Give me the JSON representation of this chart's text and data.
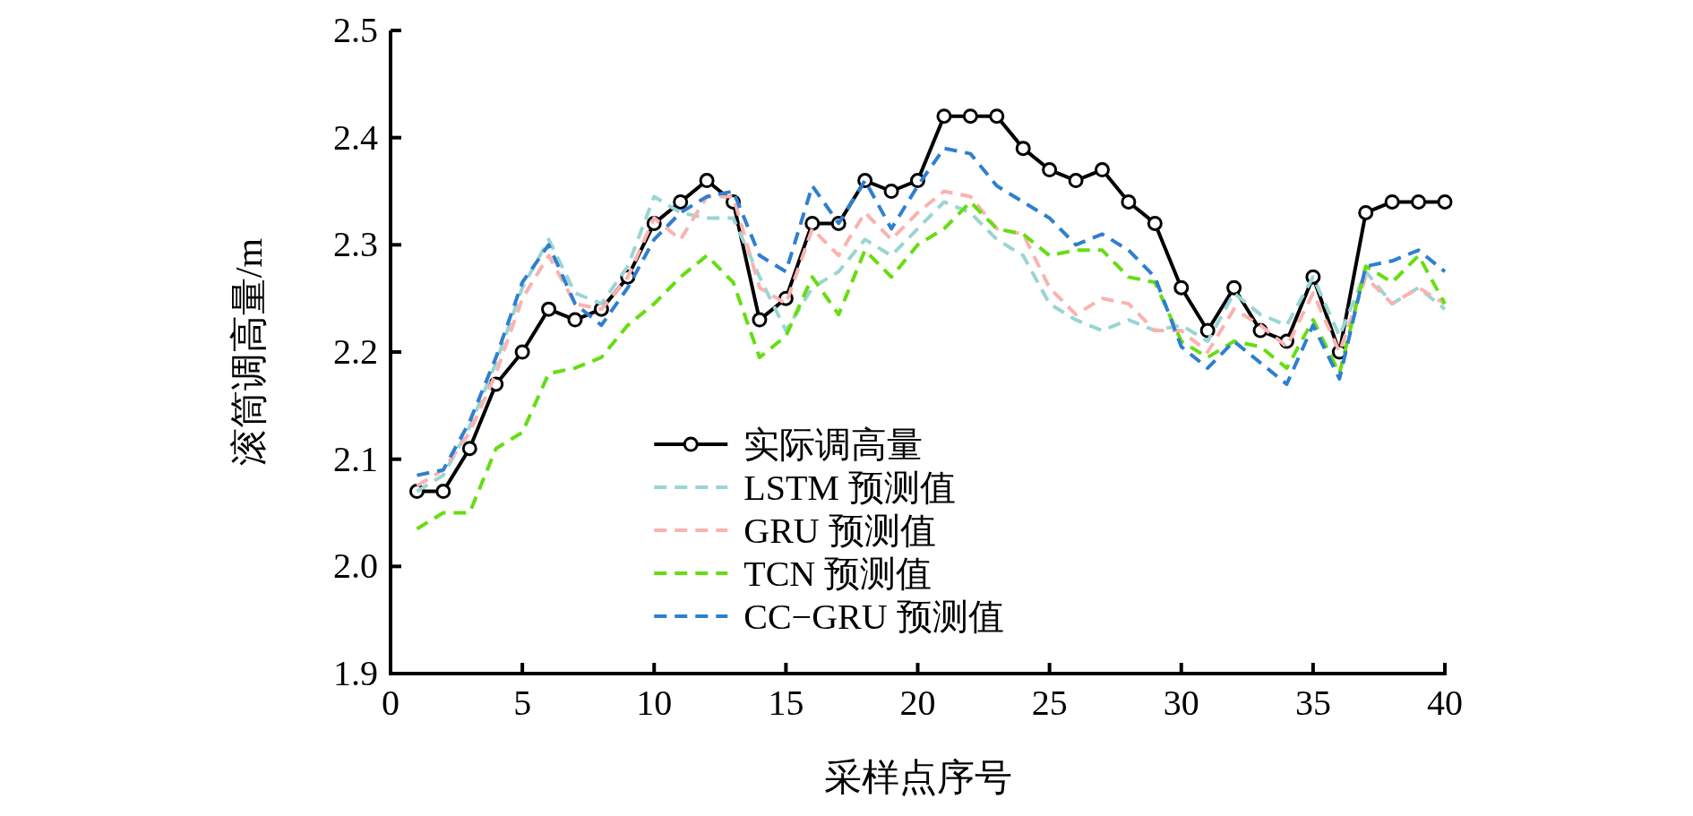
{
  "chart_data": {
    "type": "line",
    "xlabel": "采样点序号",
    "ylabel": "滚筒调高量/m",
    "x": [
      1,
      2,
      3,
      4,
      5,
      6,
      7,
      8,
      9,
      10,
      11,
      12,
      13,
      14,
      15,
      16,
      17,
      18,
      19,
      20,
      21,
      22,
      23,
      24,
      25,
      26,
      27,
      28,
      29,
      30,
      31,
      32,
      33,
      34,
      35,
      36,
      37,
      38,
      39,
      40
    ],
    "xlim": [
      0,
      40
    ],
    "xticks": [
      0,
      5,
      10,
      15,
      20,
      25,
      30,
      35,
      40
    ],
    "ylim": [
      1.9,
      2.5
    ],
    "yticks": [
      {
        "value": 1.9,
        "label": "1.9"
      },
      {
        "value": 2.0,
        "label": "2.0"
      },
      {
        "value": 2.1,
        "label": "2.1"
      },
      {
        "value": 2.2,
        "label": "2.2"
      },
      {
        "value": 2.3,
        "label": "2.3"
      },
      {
        "value": 2.4,
        "label": "2.4"
      },
      {
        "value": 2.5,
        "label": "2.5"
      }
    ],
    "grid": false,
    "legend": "bottom",
    "series": [
      {
        "name": "实际调高量",
        "color": "#000000",
        "line_style": "solid",
        "marker": "circle",
        "values": [
          2.07,
          2.07,
          2.11,
          2.17,
          2.2,
          2.24,
          2.23,
          2.24,
          2.27,
          2.32,
          2.34,
          2.36,
          2.34,
          2.23,
          2.25,
          2.32,
          2.32,
          2.36,
          2.35,
          2.36,
          2.42,
          2.42,
          2.42,
          2.39,
          2.37,
          2.36,
          2.37,
          2.34,
          2.32,
          2.26,
          2.22,
          2.26,
          2.22,
          2.21,
          2.27,
          2.2,
          2.33,
          2.34,
          2.34,
          2.34
        ]
      },
      {
        "name": "LSTM 预测值",
        "color": "#99d5d3",
        "line_style": "dashed",
        "marker": "none",
        "values": [
          2.07,
          2.085,
          2.13,
          2.19,
          2.26,
          2.305,
          2.255,
          2.245,
          2.28,
          2.345,
          2.33,
          2.325,
          2.325,
          2.27,
          2.22,
          2.26,
          2.275,
          2.305,
          2.29,
          2.315,
          2.34,
          2.33,
          2.305,
          2.29,
          2.245,
          2.23,
          2.22,
          2.23,
          2.22,
          2.225,
          2.21,
          2.255,
          2.235,
          2.225,
          2.27,
          2.215,
          2.275,
          2.245,
          2.26,
          2.24
        ]
      },
      {
        "name": "GRU 预测值",
        "color": "#f9b3b0",
        "line_style": "dashed",
        "marker": "none",
        "values": [
          2.075,
          2.09,
          2.125,
          2.18,
          2.25,
          2.29,
          2.245,
          2.24,
          2.27,
          2.325,
          2.305,
          2.345,
          2.345,
          2.26,
          2.245,
          2.315,
          2.29,
          2.33,
          2.305,
          2.33,
          2.35,
          2.345,
          2.315,
          2.31,
          2.26,
          2.235,
          2.25,
          2.245,
          2.22,
          2.22,
          2.2,
          2.24,
          2.225,
          2.205,
          2.255,
          2.2,
          2.27,
          2.245,
          2.26,
          2.245
        ]
      },
      {
        "name": "TCN 预测值",
        "color": "#66dd11",
        "line_style": "dashed",
        "marker": "none",
        "values": [
          2.035,
          2.05,
          2.05,
          2.11,
          2.125,
          2.18,
          2.185,
          2.195,
          2.225,
          2.245,
          2.27,
          2.29,
          2.265,
          2.195,
          2.215,
          2.27,
          2.235,
          2.295,
          2.27,
          2.3,
          2.315,
          2.34,
          2.315,
          2.31,
          2.29,
          2.295,
          2.295,
          2.27,
          2.265,
          2.21,
          2.195,
          2.21,
          2.205,
          2.185,
          2.23,
          2.18,
          2.28,
          2.265,
          2.29,
          2.245
        ]
      },
      {
        "name": "CC−GRU 预测值",
        "color": "#2f7fd0",
        "line_style": "dashed",
        "marker": "none",
        "values": [
          2.085,
          2.09,
          2.135,
          2.195,
          2.265,
          2.3,
          2.245,
          2.225,
          2.26,
          2.305,
          2.33,
          2.345,
          2.35,
          2.29,
          2.275,
          2.355,
          2.32,
          2.36,
          2.315,
          2.355,
          2.39,
          2.385,
          2.355,
          2.34,
          2.325,
          2.3,
          2.31,
          2.295,
          2.27,
          2.205,
          2.185,
          2.21,
          2.19,
          2.17,
          2.225,
          2.175,
          2.28,
          2.285,
          2.295,
          2.275
        ]
      }
    ]
  }
}
